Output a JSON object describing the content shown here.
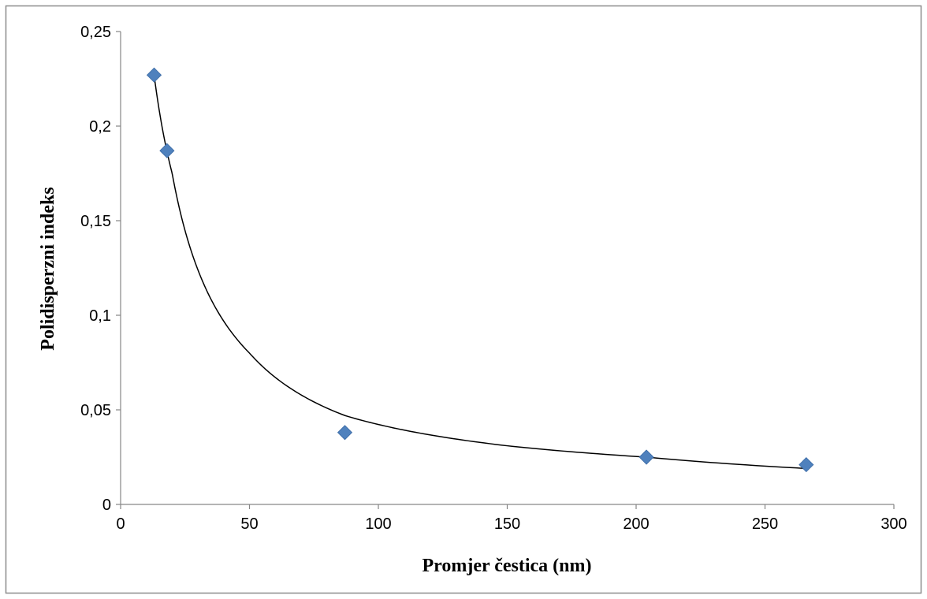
{
  "chart_data": {
    "type": "scatter",
    "title": "",
    "xlabel": "Promjer čestica (nm)",
    "ylabel": "Polidisperzni indeks",
    "xlim": [
      0,
      300
    ],
    "ylim": [
      0,
      0.25
    ],
    "xticks": [
      0,
      50,
      100,
      150,
      200,
      250,
      300
    ],
    "xtick_labels": [
      "0",
      "50",
      "100",
      "150",
      "200",
      "250",
      "300"
    ],
    "yticks": [
      0,
      0.05,
      0.1,
      0.15,
      0.2,
      0.25
    ],
    "ytick_labels": [
      "0",
      "0,05",
      "0,1",
      "0,15",
      "0,2",
      "0,25"
    ],
    "grid": false,
    "legend": "none",
    "series": [
      {
        "marker": "diamond",
        "color": "#4F81BD",
        "x": [
          13,
          18,
          87,
          204,
          266
        ],
        "y": [
          0.227,
          0.187,
          0.038,
          0.025,
          0.021
        ]
      }
    ],
    "trendline": {
      "type": "power",
      "color": "#000000",
      "x_range": [
        13,
        266
      ],
      "points": [
        [
          13,
          0.227
        ],
        [
          20,
          0.175
        ],
        [
          30,
          0.124
        ],
        [
          50,
          0.08
        ],
        [
          87,
          0.047
        ],
        [
          150,
          0.031
        ],
        [
          204,
          0.025
        ],
        [
          266,
          0.019
        ]
      ]
    }
  }
}
